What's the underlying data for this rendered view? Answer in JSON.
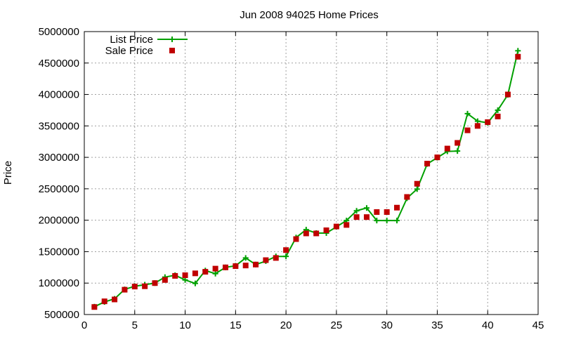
{
  "chart_data": {
    "type": "line",
    "title": "Jun 2008 94025 Home Prices",
    "xlabel": "",
    "ylabel": "Price",
    "xlim": [
      0,
      45
    ],
    "ylim": [
      500000,
      5000000
    ],
    "x_ticks": [
      "0",
      "5",
      "10",
      "15",
      "20",
      "25",
      "30",
      "35",
      "40",
      "45"
    ],
    "y_ticks": [
      "500000",
      "1000000",
      "1500000",
      "2000000",
      "2500000",
      "3000000",
      "3500000",
      "4000000",
      "4500000",
      "5000000"
    ],
    "grid": true,
    "legend_position": "top-left",
    "series": [
      {
        "name": "List Price",
        "style": "line-points",
        "color": "#00a000",
        "x": [
          1,
          2,
          3,
          4,
          5,
          6,
          7,
          8,
          9,
          10,
          11,
          12,
          13,
          14,
          15,
          16,
          17,
          18,
          19,
          20,
          21,
          22,
          23,
          24,
          25,
          26,
          27,
          28,
          29,
          30,
          31,
          32,
          33,
          34,
          35,
          36,
          37,
          38,
          39,
          40,
          41,
          42,
          43
        ],
        "y": [
          625000,
          700000,
          750000,
          900000,
          950000,
          975000,
          1000000,
          1095000,
          1125000,
          1050000,
          995000,
          1200000,
          1150000,
          1250000,
          1275000,
          1400000,
          1295000,
          1350000,
          1425000,
          1425000,
          1725000,
          1850000,
          1795000,
          1795000,
          1895000,
          1995000,
          2150000,
          2195000,
          1995000,
          1995000,
          1995000,
          2350000,
          2495000,
          2895000,
          2995000,
          3095000,
          3100000,
          3695000,
          3575000,
          3550000,
          3750000,
          3995000,
          4695000
        ]
      },
      {
        "name": "Sale Price",
        "style": "points",
        "color": "#c00000",
        "x": [
          1,
          2,
          3,
          4,
          5,
          6,
          7,
          8,
          9,
          10,
          11,
          12,
          13,
          14,
          15,
          16,
          17,
          18,
          19,
          20,
          21,
          22,
          23,
          24,
          25,
          26,
          27,
          28,
          29,
          30,
          31,
          32,
          33,
          34,
          35,
          36,
          37,
          38,
          39,
          40,
          41,
          42,
          43
        ],
        "y": [
          620000,
          710000,
          740000,
          895000,
          945000,
          950000,
          1000000,
          1050000,
          1115000,
          1125000,
          1155000,
          1180000,
          1230000,
          1250000,
          1270000,
          1280000,
          1295000,
          1365000,
          1400000,
          1525000,
          1700000,
          1790000,
          1790000,
          1840000,
          1900000,
          1925000,
          2050000,
          2050000,
          2130000,
          2130000,
          2200000,
          2370000,
          2580000,
          2900000,
          3000000,
          3140000,
          3230000,
          3430000,
          3500000,
          3560000,
          3650000,
          4000000,
          4600000
        ]
      }
    ]
  }
}
